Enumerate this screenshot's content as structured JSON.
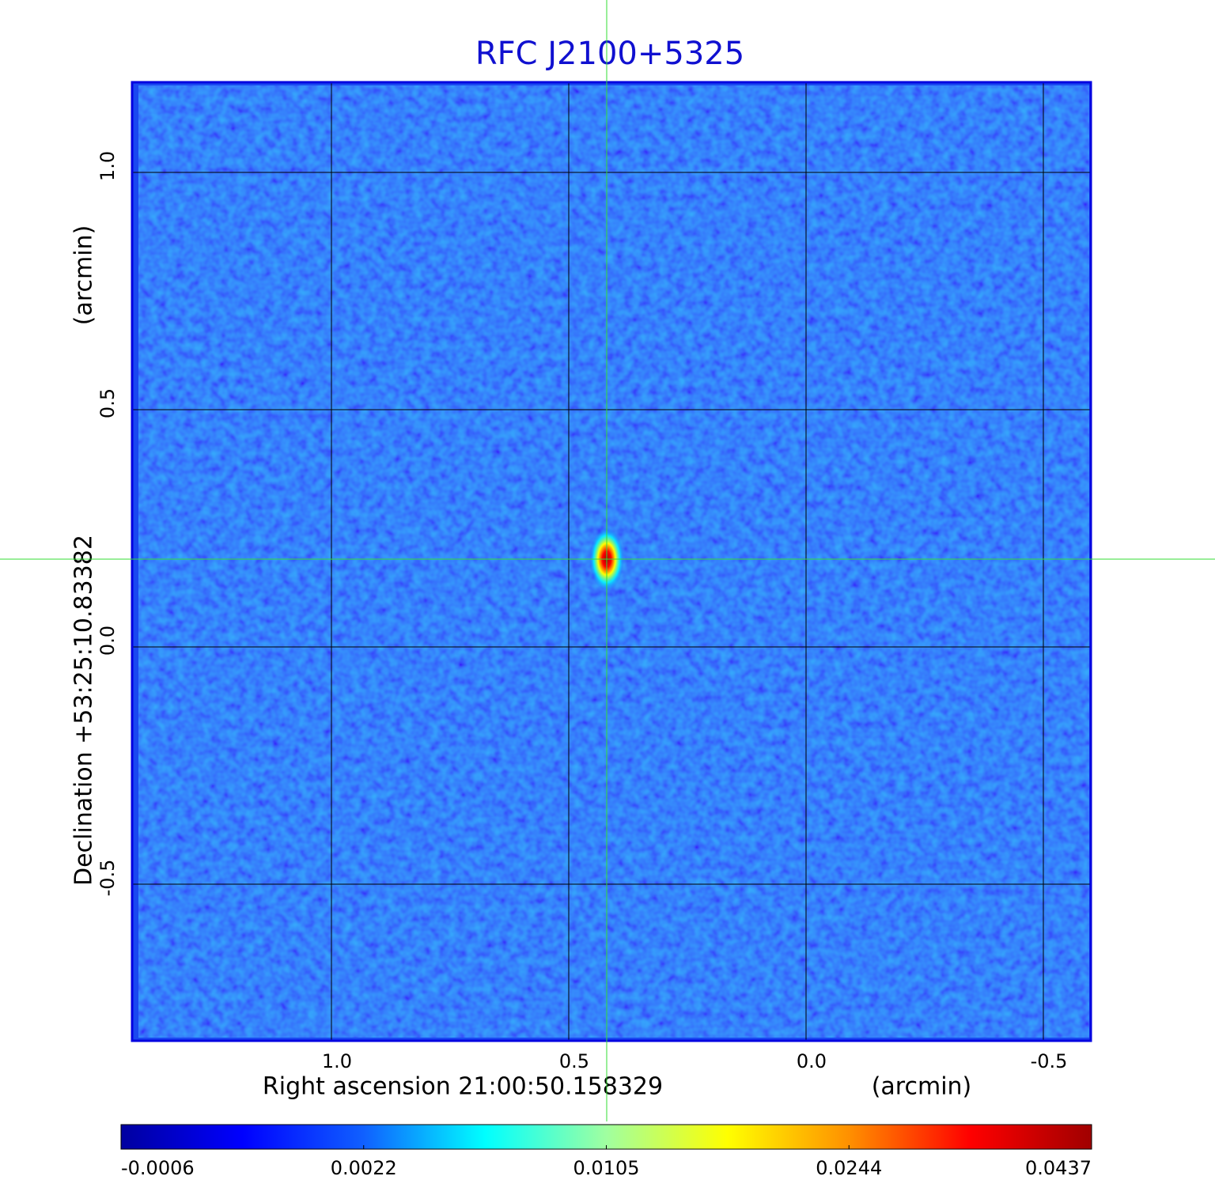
{
  "chart_data": {
    "type": "image",
    "title": "RFC J2100+5325",
    "xlabel": "Right ascension  21:00:50.158329",
    "xunit": "(arcmin)",
    "ylabel": "Declination  +53:25:10.83382",
    "yunit": "(arcmin)",
    "xlim": [
      1.42,
      -0.6
    ],
    "ylim": [
      -0.83,
      1.19
    ],
    "xticks": [
      {
        "value": 1,
        "label": "1.0"
      },
      0.5,
      {
        "value": 0,
        "label": "0.0"
      },
      -0.5
    ],
    "yticks": [
      {
        "value": 1,
        "label": "1.0"
      },
      0.5,
      {
        "value": 0,
        "label": "0.0"
      },
      -0.5
    ],
    "grid": true,
    "crosshair_color": "#33dd33",
    "source": {
      "x": 0.42,
      "y": 0.185,
      "peak": 0.0437
    },
    "colorbar_lim": [
      -0.0006,
      0.0437
    ],
    "colorbar_ticks": [
      -0.0006,
      0.0022,
      0.0105,
      0.0244,
      0.0437
    ],
    "colormap": [
      "#0000a0",
      "#0000ff",
      "#1060ff",
      "#00ffff",
      "#a0ffa0",
      "#ffff00",
      "#ff9000",
      "#ff0000",
      "#a00000"
    ]
  }
}
